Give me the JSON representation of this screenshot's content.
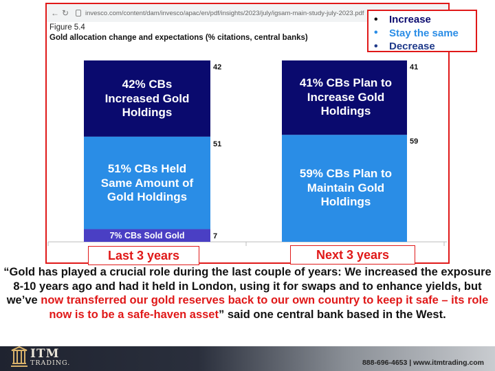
{
  "screenshot": {
    "url": "invesco.com/content/dam/invesco/apac/en/pdf/insights/2023/july/igsam-main-study-july-2023.pdf",
    "figure_label": "Figure 5.4",
    "figure_title": "Gold allocation change and expectations (% citations, central banks)"
  },
  "chart_data": {
    "type": "bar",
    "stacked": true,
    "categories": [
      "Last 3 years",
      "Next 3 years"
    ],
    "series": [
      {
        "name": "Decrease",
        "values": [
          7,
          0
        ],
        "color": "#4a3fc4"
      },
      {
        "name": "Stay the same",
        "values": [
          51,
          59
        ],
        "color": "#2a8de6"
      },
      {
        "name": "Increase",
        "values": [
          42,
          41
        ],
        "color": "#0a0a6e"
      }
    ],
    "value_labels": [
      [
        "7",
        "51",
        "42"
      ],
      [
        "",
        "59",
        "41"
      ]
    ],
    "segment_text": [
      [
        "7% CBs Sold Gold",
        "51% CBs Held Same Amount of Gold Holdings",
        "42% CBs Increased Gold Holdings"
      ],
      [
        "",
        "59% CBs Plan to Maintain Gold Holdings",
        "41% CBs Plan to Increase Gold Holdings"
      ]
    ],
    "legend_position": "top-right",
    "ylim": [
      0,
      100
    ]
  },
  "legend": {
    "items": [
      {
        "label": "Increase",
        "color": "#0a0a6e"
      },
      {
        "label": "Stay the same",
        "color": "#2a8de6"
      },
      {
        "label": "Decrease",
        "color": "#1f3a8a"
      }
    ]
  },
  "quote": {
    "part1": "“Gold has played a crucial role during the last couple of years: We increased the exposure 8-10 years ago and had it held in London, using it for swaps and to enhance yields, but we’ve ",
    "highlight": "now transferred our gold reserves back to our own country to keep it safe – its role now is to be a safe-haven asset",
    "part2": "” said one central bank based in the West."
  },
  "footer": {
    "logo_text": "ITM",
    "logo_sub": "TRADING.",
    "contact": "888-696-4653  |  www.itmtrading.com"
  },
  "colors": {
    "accent_red": "#e01818"
  }
}
